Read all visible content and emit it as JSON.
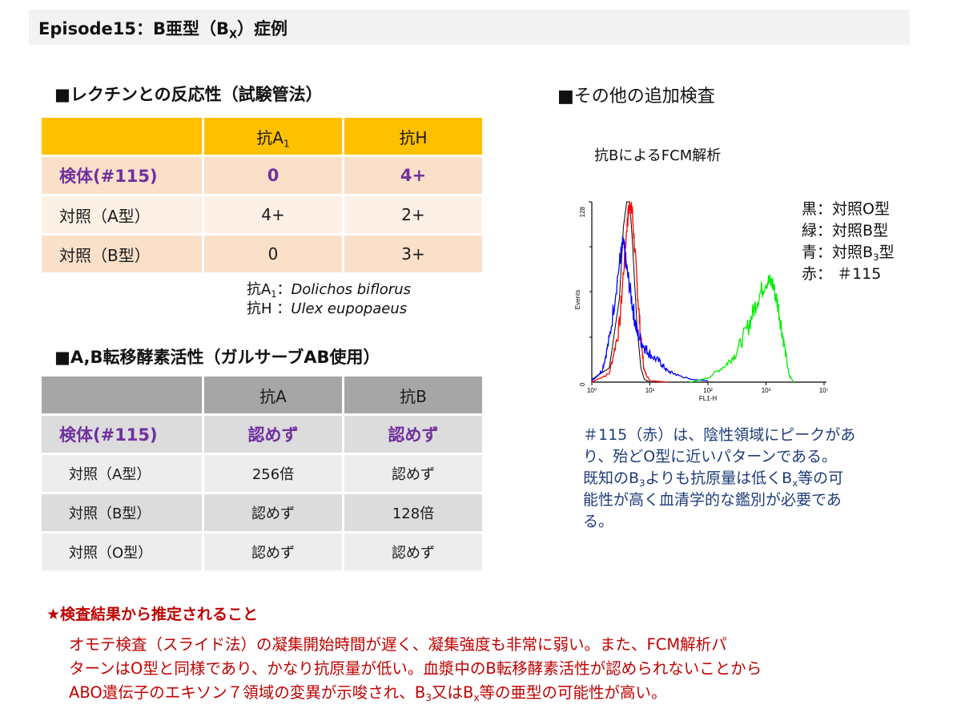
{
  "title": {
    "prefix": "Episode15：B亜型（B",
    "sub": "X",
    "suffix": "）症例"
  },
  "lectin_section": {
    "heading": "■レクチンとの反応性（試験管法）",
    "columns": [
      {
        "main": "抗A",
        "sub": "1"
      },
      {
        "main": "抗H",
        "sub": ""
      }
    ],
    "rows": [
      {
        "label": "検体(#115)",
        "values": [
          "0",
          "4+"
        ],
        "highlight": true
      },
      {
        "label": "対照（A型）",
        "values": [
          "4+",
          "2+"
        ],
        "highlight": false
      },
      {
        "label": "対照（B型）",
        "values": [
          "0",
          "3+"
        ],
        "highlight": false
      }
    ],
    "notes": [
      {
        "lhs_main": "抗A",
        "lhs_sub": "1",
        "sep": "：",
        "species": "Dolichos biflorus"
      },
      {
        "lhs_main": "抗H",
        "lhs_sub": "",
        "sep": " ：",
        "species": "Ulex eupopaeus"
      }
    ],
    "header_color": "#ffc000"
  },
  "transferase_section": {
    "heading": "■A,B転移酵素活性（ガルサーブAB使用）",
    "columns": [
      "抗A",
      "抗B"
    ],
    "rows": [
      {
        "label": "検体(#115)",
        "values": [
          "認めず",
          "認めず"
        ],
        "highlight": true
      },
      {
        "label": "対照（A型）",
        "values": [
          "256倍",
          "認めず"
        ],
        "highlight": false
      },
      {
        "label": "対照（B型）",
        "values": [
          "認めず",
          "128倍"
        ],
        "highlight": false
      },
      {
        "label": "対照（O型）",
        "values": [
          "認めず",
          "認めず"
        ],
        "highlight": false
      }
    ],
    "header_color": "#a6a6a6"
  },
  "additional_section": {
    "heading": "■その他の追加検査",
    "fcm_title": "抗BによるFCM解析",
    "legend": [
      {
        "color_name": "黒",
        "sep": "：",
        "text": "対照O型",
        "sub": "",
        "after": ""
      },
      {
        "color_name": "緑",
        "sep": "：",
        "text": "対照B型",
        "sub": "",
        "after": ""
      },
      {
        "color_name": "青",
        "sep": "：",
        "text": "対照B",
        "sub": "3",
        "after": "型"
      },
      {
        "color_name": "赤",
        "sep": "：",
        "text": " ＃115",
        "sub": "",
        "after": ""
      }
    ],
    "note_lines": [
      {
        "text": "＃115（赤）は、陰性領域にピークがあ"
      },
      {
        "text": "り、殆どO型に近いパターンである。"
      },
      {
        "a": "既知のB",
        "a_sub": "3",
        "b": "よりも抗原量は低くB",
        "b_sub": "x",
        "c": "等の可"
      },
      {
        "text": "能性が高く血清学的な鑑別が必要であ"
      },
      {
        "text": "る。"
      }
    ]
  },
  "chart_data": {
    "type": "line",
    "title": "抗BによるFCM解析",
    "xlabel": "FL1-H",
    "ylabel": "Events",
    "xscale": "log",
    "xlim": [
      1,
      10000
    ],
    "ylim": [
      0,
      128
    ],
    "x_ticks": [
      "10⁰",
      "10¹",
      "10²",
      "10³",
      "10⁴"
    ],
    "y_ticks": [
      "0",
      "128"
    ],
    "series": [
      {
        "name": "黒：対照O型",
        "color": "#000000",
        "x": [
          1,
          2,
          3,
          3.5,
          4,
          4.5,
          5,
          6,
          7,
          8,
          10,
          20
        ],
        "y": [
          2,
          10,
          60,
          110,
          128,
          128,
          100,
          40,
          10,
          2,
          0,
          0
        ]
      },
      {
        "name": "赤：#115",
        "color": "#ff0000",
        "x": [
          1,
          2,
          3,
          4,
          4.5,
          5,
          6,
          7,
          8,
          10,
          20
        ],
        "y": [
          0,
          6,
          40,
          110,
          128,
          120,
          70,
          30,
          8,
          1,
          0
        ]
      },
      {
        "name": "青：対照B3型",
        "color": "#0000ff",
        "x": [
          1,
          1.5,
          2,
          3,
          3.5,
          4,
          5,
          6,
          8,
          10,
          15,
          20,
          30,
          50,
          100
        ],
        "y": [
          1,
          8,
          30,
          85,
          100,
          80,
          55,
          35,
          25,
          20,
          14,
          8,
          5,
          2,
          1
        ]
      },
      {
        "name": "緑：対照B型",
        "color": "#00ee00",
        "x": [
          50,
          100,
          200,
          300,
          500,
          700,
          1000,
          1300,
          1600,
          2000,
          2500,
          3000
        ],
        "y": [
          0,
          3,
          12,
          20,
          40,
          58,
          72,
          70,
          55,
          30,
          5,
          0
        ]
      }
    ],
    "legend_position": "right",
    "grid": false
  },
  "conclusion": {
    "heading": "★検査結果から推定されること",
    "line1": "オモテ検査（スライド法）の凝集開始時間が遅く、凝集強度も非常に弱い。また、FCM解析パ",
    "line2": "ターンはO型と同様であり、かなり抗原量が低い。血漿中のB転移酵素活性が認められないことから",
    "line3_a": "ABO遺伝子のエキソン７領域の変異が示唆され、B",
    "line3_sub1": "3",
    "line3_b": "又はB",
    "line3_sub2": "x",
    "line3_c": "等の亜型の可能性が高い。"
  }
}
